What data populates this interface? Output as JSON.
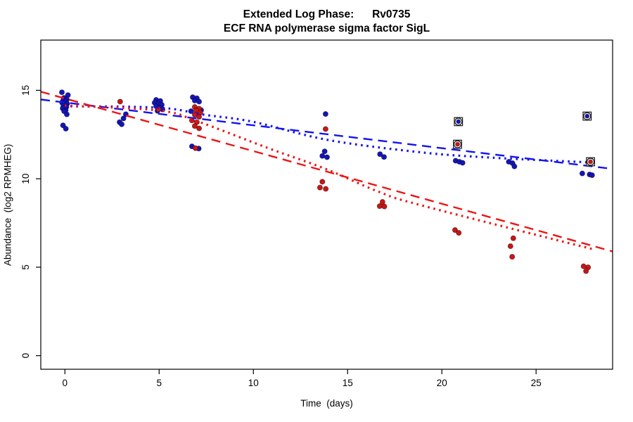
{
  "chart_data": {
    "type": "scatter",
    "title_line1": "Extended Log Phase:      Rv0735",
    "title_line2": "ECF RNA polymerase sigma factor SigL",
    "xlabel": "Time  (days)",
    "ylabel": "Abundance  (log2 RPMHEG)",
    "xlim": [
      -1.28,
      29.06
    ],
    "ylim": [
      -0.77,
      17.84
    ],
    "xticks": [
      0,
      5,
      10,
      15,
      20,
      25
    ],
    "yticks": [
      0,
      5,
      10,
      15
    ],
    "grid": false,
    "legend": "none",
    "colors": {
      "blue_points": "#1414bb",
      "red_points": "#cc1414",
      "blue_line": "#1414ee",
      "red_line": "#ee1414",
      "flag_outline": "#1a1a1a"
    },
    "series": [
      {
        "name": "blue-points",
        "color": "blue_points",
        "marker": "dot",
        "points": [
          [
            -0.16,
            14.89
          ],
          [
            0.16,
            14.73
          ],
          [
            -0.05,
            14.57
          ],
          [
            0.1,
            14.48
          ],
          [
            -0.1,
            14.42
          ],
          [
            0.05,
            14.36
          ],
          [
            -0.15,
            14.3
          ],
          [
            0.12,
            14.24
          ],
          [
            0.0,
            14.18
          ],
          [
            -0.08,
            14.12
          ],
          [
            0.08,
            14.06
          ],
          [
            -0.12,
            13.98
          ],
          [
            0.04,
            13.88
          ],
          [
            -0.04,
            13.82
          ],
          [
            0.1,
            13.64
          ],
          [
            -0.1,
            13.02
          ],
          [
            0.05,
            12.83
          ],
          [
            3.23,
            13.65
          ],
          [
            3.11,
            13.41
          ],
          [
            2.9,
            13.2
          ],
          [
            3.01,
            13.08
          ],
          [
            4.84,
            14.46
          ],
          [
            5.06,
            14.4
          ],
          [
            4.76,
            14.3
          ],
          [
            4.95,
            14.24
          ],
          [
            5.14,
            14.18
          ],
          [
            4.84,
            14.1
          ],
          [
            5.03,
            14.02
          ],
          [
            5.18,
            13.92
          ],
          [
            4.91,
            13.84
          ],
          [
            6.78,
            14.61
          ],
          [
            7.0,
            14.55
          ],
          [
            6.89,
            14.42
          ],
          [
            7.12,
            14.36
          ],
          [
            6.69,
            13.82
          ],
          [
            7.23,
            13.88
          ],
          [
            6.74,
            11.83
          ],
          [
            7.1,
            11.71
          ],
          [
            13.83,
            13.66
          ],
          [
            13.78,
            11.55
          ],
          [
            13.66,
            11.29
          ],
          [
            13.91,
            11.22
          ],
          [
            16.72,
            11.39
          ],
          [
            16.93,
            11.23
          ],
          [
            20.73,
            11.02
          ],
          [
            20.93,
            10.96
          ],
          [
            21.1,
            10.9
          ],
          [
            23.55,
            10.96
          ],
          [
            23.75,
            10.88
          ],
          [
            23.85,
            10.7
          ],
          [
            27.45,
            10.3
          ],
          [
            27.84,
            10.24
          ],
          [
            27.97,
            10.2
          ]
        ]
      },
      {
        "name": "red-points",
        "color": "red_points",
        "marker": "dot",
        "points": [
          [
            2.93,
            14.36
          ],
          [
            4.97,
            13.94
          ],
          [
            6.89,
            14.06
          ],
          [
            7.12,
            13.96
          ],
          [
            6.97,
            13.86
          ],
          [
            7.18,
            13.74
          ],
          [
            6.89,
            13.62
          ],
          [
            7.12,
            13.5
          ],
          [
            6.74,
            13.3
          ],
          [
            7.0,
            13.2
          ],
          [
            6.89,
            12.98
          ],
          [
            7.12,
            12.85
          ],
          [
            6.93,
            11.73
          ],
          [
            13.83,
            12.81
          ],
          [
            13.66,
            9.83
          ],
          [
            13.53,
            9.5
          ],
          [
            13.84,
            9.43
          ],
          [
            16.85,
            8.69
          ],
          [
            16.7,
            8.45
          ],
          [
            16.95,
            8.43
          ],
          [
            20.7,
            7.1
          ],
          [
            20.9,
            6.94
          ],
          [
            23.79,
            6.64
          ],
          [
            23.64,
            6.19
          ],
          [
            23.73,
            5.59
          ],
          [
            27.52,
            5.05
          ],
          [
            27.76,
            4.99
          ],
          [
            27.65,
            4.78
          ]
        ]
      },
      {
        "name": "blue-flagged-points",
        "color": "blue_points",
        "marker": "circle-square",
        "points": [
          [
            20.88,
            13.23
          ],
          [
            27.71,
            13.54
          ]
        ]
      },
      {
        "name": "red-flagged-points",
        "color": "red_points",
        "marker": "circle-square",
        "points": [
          [
            20.83,
            11.95
          ],
          [
            27.89,
            10.96
          ]
        ]
      }
    ],
    "lines": [
      {
        "name": "blue-dashed-fit",
        "color": "blue_line",
        "style": "longdash",
        "width": 2.4,
        "points": [
          [
            -1.28,
            14.48
          ],
          [
            29.06,
            10.56
          ]
        ]
      },
      {
        "name": "red-dashed-fit",
        "color": "red_line",
        "style": "longdash",
        "width": 2.4,
        "points": [
          [
            -1.28,
            14.92
          ],
          [
            29.06,
            5.89
          ]
        ]
      },
      {
        "name": "blue-dotted-fit",
        "color": "blue_line",
        "style": "dotted",
        "width": 3.2,
        "points": [
          [
            -0.01,
            14.1
          ],
          [
            4.99,
            14.02
          ],
          [
            7.38,
            13.62
          ],
          [
            9.99,
            13.22
          ],
          [
            13.98,
            12.19
          ],
          [
            18.94,
            11.49
          ],
          [
            22.68,
            11.19
          ],
          [
            27.97,
            10.92
          ]
        ]
      },
      {
        "name": "red-dotted-fit",
        "color": "red_line",
        "style": "dotted",
        "width": 3.2,
        "points": [
          [
            -0.01,
            14.14
          ],
          [
            4.99,
            13.86
          ],
          [
            7.0,
            13.26
          ],
          [
            10.74,
            11.75
          ],
          [
            13.83,
            10.56
          ],
          [
            16.59,
            9.29
          ],
          [
            18.94,
            8.49
          ],
          [
            27.97,
            6.03
          ]
        ]
      }
    ]
  }
}
